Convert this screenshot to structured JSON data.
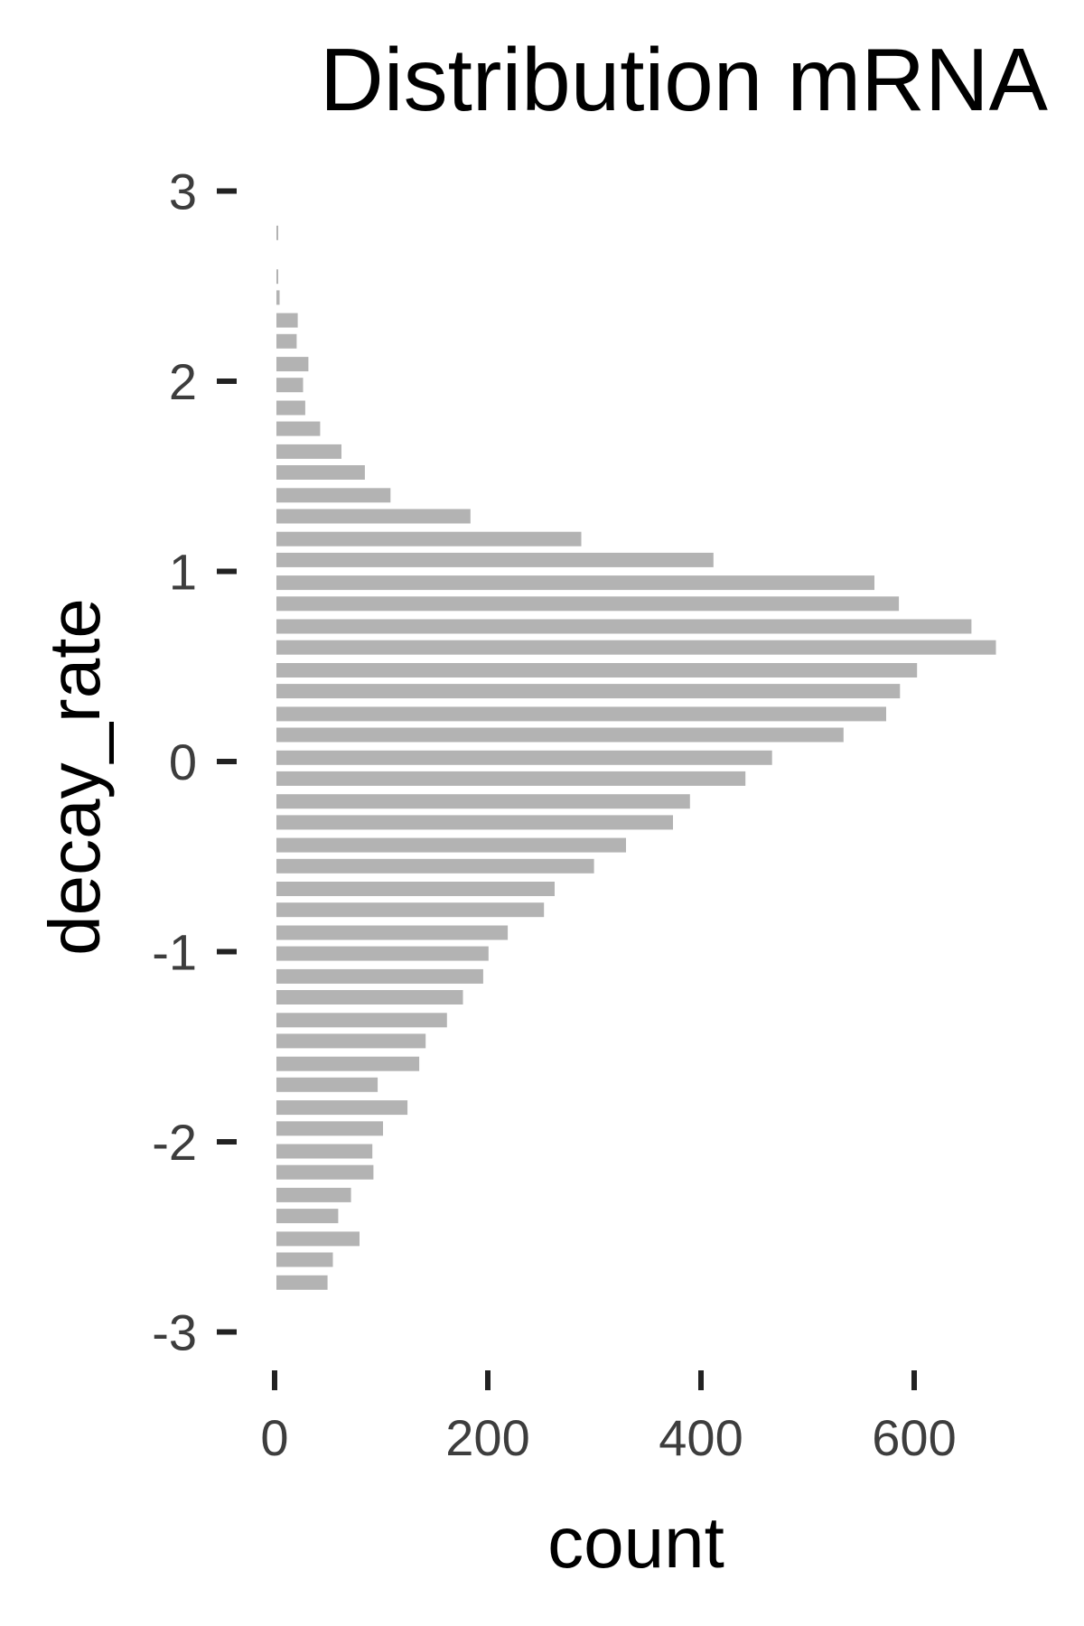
{
  "chart_data": {
    "type": "bar",
    "orientation": "horizontal",
    "title": "Distribution mRNA",
    "xlabel": "count",
    "ylabel": "decay_rate",
    "xlim": [
      0,
      680
    ],
    "ylim": [
      -3.1,
      3.1
    ],
    "xticks": [
      0,
      200,
      400,
      600
    ],
    "xtick_labels": [
      "0",
      "200",
      "400",
      "600"
    ],
    "yticks": [
      -3,
      -2,
      -1,
      0,
      1,
      2,
      3
    ],
    "ytick_labels": [
      "-3",
      "-2",
      "-1",
      "0",
      "1",
      "2",
      "3"
    ],
    "grid": false,
    "bar_color": "#b3b3b3",
    "bins": [
      {
        "y": 2.78,
        "count": 1
      },
      {
        "y": 2.55,
        "count": 1
      },
      {
        "y": 2.44,
        "count": 3
      },
      {
        "y": 2.32,
        "count": 20
      },
      {
        "y": 2.21,
        "count": 19
      },
      {
        "y": 2.09,
        "count": 30
      },
      {
        "y": 1.98,
        "count": 25
      },
      {
        "y": 1.86,
        "count": 27
      },
      {
        "y": 1.75,
        "count": 41
      },
      {
        "y": 1.63,
        "count": 61
      },
      {
        "y": 1.52,
        "count": 83
      },
      {
        "y": 1.4,
        "count": 107
      },
      {
        "y": 1.29,
        "count": 182
      },
      {
        "y": 1.17,
        "count": 286
      },
      {
        "y": 1.06,
        "count": 410
      },
      {
        "y": 0.94,
        "count": 561
      },
      {
        "y": 0.83,
        "count": 584
      },
      {
        "y": 0.71,
        "count": 652
      },
      {
        "y": 0.6,
        "count": 675
      },
      {
        "y": 0.48,
        "count": 601
      },
      {
        "y": 0.37,
        "count": 585
      },
      {
        "y": 0.25,
        "count": 572
      },
      {
        "y": 0.14,
        "count": 532
      },
      {
        "y": 0.02,
        "count": 465
      },
      {
        "y": -0.09,
        "count": 440
      },
      {
        "y": -0.21,
        "count": 388
      },
      {
        "y": -0.32,
        "count": 372
      },
      {
        "y": -0.44,
        "count": 328
      },
      {
        "y": -0.55,
        "count": 298
      },
      {
        "y": -0.67,
        "count": 261
      },
      {
        "y": -0.78,
        "count": 251
      },
      {
        "y": -0.9,
        "count": 217
      },
      {
        "y": -1.01,
        "count": 199
      },
      {
        "y": -1.13,
        "count": 194
      },
      {
        "y": -1.24,
        "count": 175
      },
      {
        "y": -1.36,
        "count": 160
      },
      {
        "y": -1.47,
        "count": 140
      },
      {
        "y": -1.59,
        "count": 134
      },
      {
        "y": -1.7,
        "count": 95
      },
      {
        "y": -1.82,
        "count": 123
      },
      {
        "y": -1.93,
        "count": 100
      },
      {
        "y": -2.05,
        "count": 90
      },
      {
        "y": -2.16,
        "count": 91
      },
      {
        "y": -2.28,
        "count": 70
      },
      {
        "y": -2.39,
        "count": 58
      },
      {
        "y": -2.51,
        "count": 78
      },
      {
        "y": -2.62,
        "count": 53
      },
      {
        "y": -2.74,
        "count": 48
      }
    ]
  }
}
